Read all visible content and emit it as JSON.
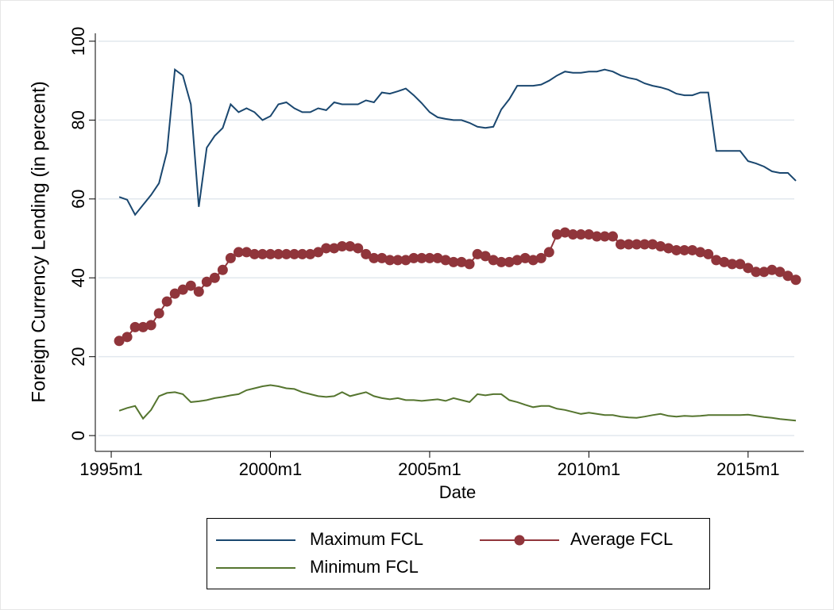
{
  "chart_data": {
    "type": "line",
    "xlabel": "Date",
    "ylabel": "Foreign Currency Lending (in percent)",
    "x": [
      "1995m4",
      "1995m7",
      "1995m10",
      "1996m1",
      "1996m4",
      "1996m7",
      "1996m10",
      "1997m1",
      "1997m4",
      "1997m7",
      "1997m10",
      "1998m1",
      "1998m4",
      "1998m7",
      "1998m10",
      "1999m1",
      "1999m4",
      "1999m7",
      "1999m10",
      "2000m1",
      "2000m4",
      "2000m7",
      "2000m10",
      "2001m1",
      "2001m4",
      "2001m7",
      "2001m10",
      "2002m1",
      "2002m4",
      "2002m7",
      "2002m10",
      "2003m1",
      "2003m4",
      "2003m7",
      "2003m10",
      "2004m1",
      "2004m4",
      "2004m7",
      "2004m10",
      "2005m1",
      "2005m4",
      "2005m7",
      "2005m10",
      "2006m1",
      "2006m4",
      "2006m7",
      "2006m10",
      "2007m1",
      "2007m4",
      "2007m7",
      "2007m10",
      "2008m1",
      "2008m4",
      "2008m7",
      "2008m10",
      "2009m1",
      "2009m4",
      "2009m7",
      "2009m10",
      "2010m1",
      "2010m4",
      "2010m7",
      "2010m10",
      "2011m1",
      "2011m4",
      "2011m7",
      "2011m10",
      "2012m1",
      "2012m4",
      "2012m7",
      "2012m10",
      "2013m1",
      "2013m4",
      "2013m7",
      "2013m10",
      "2014m1",
      "2014m4",
      "2014m7",
      "2014m10",
      "2015m1",
      "2015m4",
      "2015m7",
      "2015m10",
      "2016m1",
      "2016m4",
      "2016m7"
    ],
    "series": [
      {
        "name": "Maximum FCL",
        "color": "#1a476f",
        "marker": false,
        "values": [
          60.5,
          59.8,
          56,
          58.5,
          61,
          64,
          72,
          92.8,
          91.3,
          84,
          58,
          73,
          76,
          78,
          84,
          82,
          83,
          82,
          80,
          81,
          84,
          84.5,
          83,
          82,
          82,
          83,
          82.5,
          84.5,
          84,
          84,
          84,
          85,
          84.5,
          87,
          86.7,
          87.3,
          88,
          86.3,
          84.3,
          82,
          80.7,
          80.3,
          80,
          80,
          79.3,
          78.3,
          78,
          78.3,
          82.7,
          85.3,
          88.7,
          88.7,
          88.7,
          89,
          90,
          91.3,
          92.3,
          92,
          92,
          92.3,
          92.3,
          92.8,
          92.3,
          91.3,
          90.7,
          90.3,
          89.3,
          88.7,
          88.3,
          87.7,
          86.7,
          86.3,
          86.3,
          87,
          87,
          72.2,
          72.2,
          72.2,
          72.2,
          69.6,
          69,
          68.2,
          67,
          66.6,
          66.6,
          64.6
        ]
      },
      {
        "name": "Average FCL",
        "color": "#90353b",
        "marker": true,
        "values": [
          24,
          25,
          27.5,
          27.5,
          28,
          31,
          34,
          36,
          37,
          38,
          36.5,
          39,
          40,
          42,
          45,
          46.5,
          46.5,
          46,
          46,
          46,
          46,
          46,
          46,
          46,
          46,
          46.5,
          47.5,
          47.5,
          48,
          48,
          47.5,
          46,
          45,
          45,
          44.5,
          44.5,
          44.5,
          45,
          45,
          45,
          45,
          44.5,
          44,
          44,
          43.5,
          46,
          45.5,
          44.5,
          44,
          44,
          44.5,
          45,
          44.5,
          45,
          46.5,
          51,
          51.5,
          51,
          51,
          51,
          50.5,
          50.5,
          50.5,
          48.5,
          48.5,
          48.5,
          48.5,
          48.5,
          48,
          47.5,
          47,
          47,
          47,
          46.5,
          46,
          44.5,
          44,
          43.5,
          43.5,
          42.5,
          41.5,
          41.5,
          42,
          41.5,
          40.5,
          39.5
        ]
      },
      {
        "name": "Minimum FCL",
        "color": "#55752f",
        "marker": false,
        "values": [
          6.3,
          7,
          7.5,
          4.3,
          6.5,
          10,
          10.8,
          11,
          10.5,
          8.5,
          8.7,
          9,
          9.5,
          9.8,
          10.2,
          10.5,
          11.5,
          12,
          12.5,
          12.8,
          12.5,
          12,
          11.8,
          11,
          10.5,
          10,
          9.8,
          10,
          11,
          10,
          10.5,
          11,
          10,
          9.5,
          9.2,
          9.5,
          9,
          9,
          8.8,
          9,
          9.2,
          8.8,
          9.5,
          9,
          8.5,
          10.5,
          10.2,
          10.5,
          10.5,
          9,
          8.5,
          7.8,
          7.2,
          7.5,
          7.5,
          6.8,
          6.5,
          6,
          5.5,
          5.8,
          5.5,
          5.2,
          5.2,
          4.8,
          4.6,
          4.5,
          4.8,
          5.2,
          5.5,
          5,
          4.8,
          5,
          4.9,
          5,
          5.2,
          5.2,
          5.2,
          5.2,
          5.2,
          5.3,
          5,
          4.7,
          4.5,
          4.2,
          4,
          3.8
        ]
      }
    ],
    "xlim": [
      "1994m7",
      "2016m10"
    ],
    "xticks": [
      "1995m1",
      "2000m1",
      "2005m1",
      "2010m1",
      "2015m1"
    ],
    "ylim": [
      -4,
      102
    ],
    "yticks": [
      0,
      20,
      40,
      60,
      80,
      100
    ],
    "grid": true
  }
}
